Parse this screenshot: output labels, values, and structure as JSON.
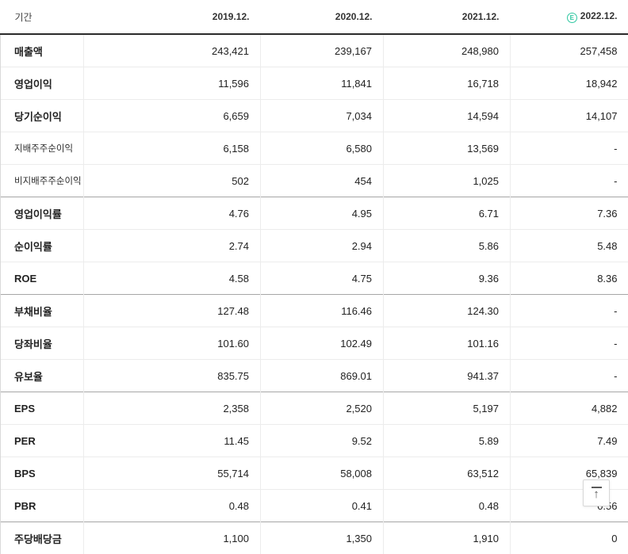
{
  "table": {
    "header": {
      "period_label": "기간",
      "columns": [
        "2019.12.",
        "2020.12.",
        "2021.12.",
        "2022.12."
      ],
      "estimate_column_index": 3,
      "estimate_icon_letter": "E"
    },
    "rows": [
      {
        "label": "매출액",
        "sub": false,
        "group_start": false,
        "values": [
          "243,421",
          "239,167",
          "248,980",
          "257,458"
        ]
      },
      {
        "label": "영업이익",
        "sub": false,
        "group_start": false,
        "values": [
          "11,596",
          "11,841",
          "16,718",
          "18,942"
        ]
      },
      {
        "label": "당기순이익",
        "sub": false,
        "group_start": false,
        "values": [
          "6,659",
          "7,034",
          "14,594",
          "14,107"
        ]
      },
      {
        "label": "지배주주순이익",
        "sub": true,
        "group_start": false,
        "values": [
          "6,158",
          "6,580",
          "13,569",
          "-"
        ]
      },
      {
        "label": "비지배주주순이익",
        "sub": true,
        "group_start": false,
        "values": [
          "502",
          "454",
          "1,025",
          "-"
        ]
      },
      {
        "label": "영업이익률",
        "sub": false,
        "group_start": true,
        "values": [
          "4.76",
          "4.95",
          "6.71",
          "7.36"
        ]
      },
      {
        "label": "순이익률",
        "sub": false,
        "group_start": false,
        "values": [
          "2.74",
          "2.94",
          "5.86",
          "5.48"
        ]
      },
      {
        "label": "ROE",
        "sub": false,
        "group_start": false,
        "values": [
          "4.58",
          "4.75",
          "9.36",
          "8.36"
        ]
      },
      {
        "label": "부채비율",
        "sub": false,
        "group_start": true,
        "values": [
          "127.48",
          "116.46",
          "124.30",
          "-"
        ]
      },
      {
        "label": "당좌비율",
        "sub": false,
        "group_start": false,
        "values": [
          "101.60",
          "102.49",
          "101.16",
          "-"
        ]
      },
      {
        "label": "유보율",
        "sub": false,
        "group_start": false,
        "values": [
          "835.75",
          "869.01",
          "941.37",
          "-"
        ]
      },
      {
        "label": "EPS",
        "sub": false,
        "group_start": true,
        "values": [
          "2,358",
          "2,520",
          "5,197",
          "4,882"
        ]
      },
      {
        "label": "PER",
        "sub": false,
        "group_start": false,
        "values": [
          "11.45",
          "9.52",
          "5.89",
          "7.49"
        ]
      },
      {
        "label": "BPS",
        "sub": false,
        "group_start": false,
        "values": [
          "55,714",
          "58,008",
          "63,512",
          "65,839"
        ]
      },
      {
        "label": "PBR",
        "sub": false,
        "group_start": false,
        "values": [
          "0.48",
          "0.41",
          "0.48",
          "0.56"
        ]
      },
      {
        "label": "주당배당금",
        "sub": false,
        "group_start": true,
        "values": [
          "1,100",
          "1,350",
          "1,910",
          "0"
        ]
      }
    ]
  },
  "scroll_top_button": {
    "arrow_glyph": "↑"
  },
  "colors": {
    "estimate_green": "#2fc7a1",
    "header_border": "#2b2b2b",
    "row_border": "#ececec",
    "group_border": "#a6a6a6",
    "text": "#222222"
  }
}
